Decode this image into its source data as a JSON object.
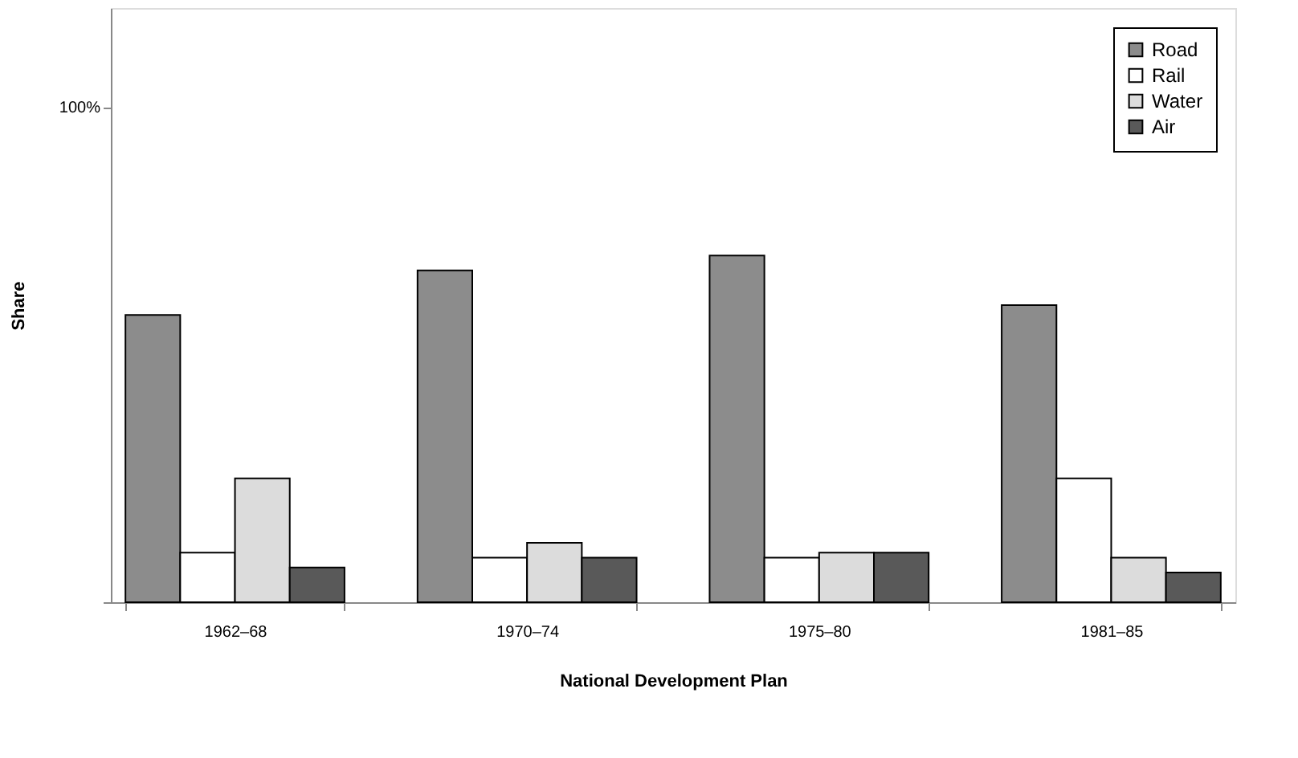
{
  "chart_data": {
    "type": "bar",
    "xlabel": "National Development Plan",
    "ylabel": "Share",
    "categories": [
      "1962–68",
      "1970–74",
      "1975–80",
      "1981–85"
    ],
    "series": [
      {
        "name": "Road",
        "color": "#8c8c8c",
        "values": [
          58,
          67,
          70,
          60
        ]
      },
      {
        "name": "Rail",
        "color": "#ffffff",
        "values": [
          10,
          9,
          9,
          25
        ]
      },
      {
        "name": "Water",
        "color": "#dcdcdc",
        "values": [
          25,
          12,
          10,
          9
        ]
      },
      {
        "name": "Air",
        "color": "#595959",
        "values": [
          7,
          9,
          10,
          6
        ]
      }
    ],
    "ylim": [
      0,
      120
    ],
    "yticks": [
      {
        "value": 0,
        "label": null
      },
      {
        "value": 100,
        "label": "100%"
      }
    ],
    "grid": false,
    "legend": "top right"
  }
}
